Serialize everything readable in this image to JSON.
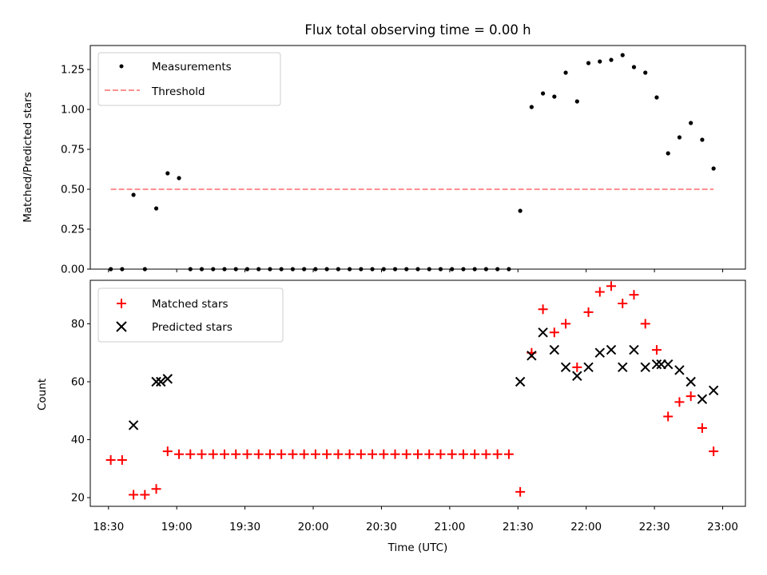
{
  "chart_data": [
    {
      "type": "scatter",
      "title": "Flux total observing time = 0.00 h",
      "xlabel": "",
      "ylabel": "Matched/Predicted stars",
      "xlim": [
        "18:22",
        "23:10"
      ],
      "ylim": [
        0,
        1.4
      ],
      "yticks": [
        0.0,
        0.25,
        0.5,
        0.75,
        1.0,
        1.25
      ],
      "ytick_labels": [
        "0.00",
        "0.25",
        "0.50",
        "0.75",
        "1.00",
        "1.25"
      ],
      "legend_position": "top-left",
      "series": [
        {
          "name": "Measurements",
          "marker": "dot",
          "color": "#000000",
          "x": [
            "18:31",
            "18:36",
            "18:46",
            "18:51",
            "18:56",
            "19:01",
            "19:06",
            "19:11",
            "19:16",
            "19:21",
            "19:26",
            "19:31",
            "19:36",
            "19:41",
            "19:46",
            "19:51",
            "19:56",
            "20:01",
            "20:06",
            "20:11",
            "20:16",
            "20:21",
            "20:26",
            "20:31",
            "20:36",
            "20:41",
            "20:46",
            "20:51",
            "20:56",
            "21:01",
            "21:06",
            "21:11",
            "21:16",
            "21:21",
            "21:26",
            "21:31",
            "21:36",
            "21:41",
            "21:46",
            "21:51",
            "21:56",
            "22:01",
            "22:06",
            "22:11",
            "22:16",
            "22:21",
            "22:26",
            "22:31",
            "22:36",
            "22:41",
            "22:46",
            "22:51",
            "22:56"
          ],
          "y": [
            0.0,
            0.0,
            0.0,
            0.38,
            0.6,
            0.57,
            0.0,
            0.0,
            0.0,
            0.0,
            0.0,
            0.0,
            0.0,
            0.0,
            0.0,
            0.0,
            0.0,
            0.0,
            0.0,
            0.0,
            0.0,
            0.0,
            0.0,
            0.0,
            0.0,
            0.0,
            0.0,
            0.0,
            0.0,
            0.0,
            0.0,
            0.0,
            0.0,
            0.0,
            0.0,
            0.365,
            1.015,
            1.1,
            1.08,
            1.23,
            1.05,
            1.29,
            1.3,
            1.31,
            1.34,
            1.265,
            1.23,
            1.075,
            0.725,
            0.825,
            0.915,
            0.81,
            0.63
          ]
        },
        {
          "name": "",
          "marker": "dot",
          "color": "#000000",
          "x": [
            "18:41"
          ],
          "y": [
            0.465
          ]
        },
        {
          "name": "Threshold",
          "type": "line",
          "style": "dashed",
          "color": "#ff8080",
          "x": [
            "18:31",
            "22:56"
          ],
          "y": [
            0.5,
            0.5
          ]
        }
      ]
    },
    {
      "type": "scatter",
      "title": "",
      "xlabel": "Time (UTC)",
      "ylabel": "Count",
      "xlim": [
        "18:22",
        "23:10"
      ],
      "ylim": [
        17,
        95
      ],
      "yticks": [
        20,
        40,
        60,
        80
      ],
      "xticks": [
        "18:30",
        "19:00",
        "19:30",
        "20:00",
        "20:30",
        "21:00",
        "21:30",
        "22:00",
        "22:30",
        "23:00"
      ],
      "legend_position": "top-left",
      "series": [
        {
          "name": "Matched stars",
          "marker": "plus",
          "color": "#ff0000",
          "x": [
            "18:31",
            "18:36",
            "18:41",
            "18:46",
            "18:51",
            "18:56",
            "19:01",
            "19:06",
            "19:11",
            "19:16",
            "19:21",
            "19:26",
            "19:31",
            "19:36",
            "19:41",
            "19:46",
            "19:51",
            "19:56",
            "20:01",
            "20:06",
            "20:11",
            "20:16",
            "20:21",
            "20:26",
            "20:31",
            "20:36",
            "20:41",
            "20:46",
            "20:51",
            "20:56",
            "21:01",
            "21:06",
            "21:11",
            "21:16",
            "21:21",
            "21:26",
            "21:31",
            "21:36",
            "21:41",
            "21:46",
            "21:51",
            "21:56",
            "22:01",
            "22:06",
            "22:11",
            "22:16",
            "22:21",
            "22:26",
            "22:31",
            "22:36",
            "22:41",
            "22:46",
            "22:51",
            "22:56"
          ],
          "y": [
            33,
            33,
            21,
            21,
            23,
            36,
            35,
            35,
            35,
            35,
            35,
            35,
            35,
            35,
            35,
            35,
            35,
            35,
            35,
            35,
            35,
            35,
            35,
            35,
            35,
            35,
            35,
            35,
            35,
            35,
            35,
            35,
            35,
            35,
            35,
            35,
            22,
            70,
            85,
            77,
            80,
            65,
            84,
            91,
            93,
            87,
            90,
            80,
            71,
            48,
            53,
            55,
            44,
            36
          ]
        },
        {
          "name": "Predicted stars",
          "marker": "x",
          "color": "#000000",
          "x": [
            "18:41",
            "18:51",
            "18:53",
            "18:56",
            "21:31",
            "21:36",
            "21:41",
            "21:46",
            "21:51",
            "21:56",
            "22:01",
            "22:06",
            "22:11",
            "22:16",
            "22:21",
            "22:26",
            "22:31",
            "22:33",
            "22:36",
            "22:41",
            "22:46",
            "22:51",
            "22:56"
          ],
          "y": [
            45,
            60,
            60,
            61,
            60,
            69,
            77,
            71,
            65,
            62,
            65,
            70,
            71,
            65,
            71,
            65,
            66,
            66,
            66,
            64,
            60,
            54,
            57
          ]
        }
      ]
    }
  ],
  "colors": {
    "threshold": "#ff8080",
    "matched": "#ff0000",
    "predicted": "#000000",
    "measurement": "#000000"
  }
}
